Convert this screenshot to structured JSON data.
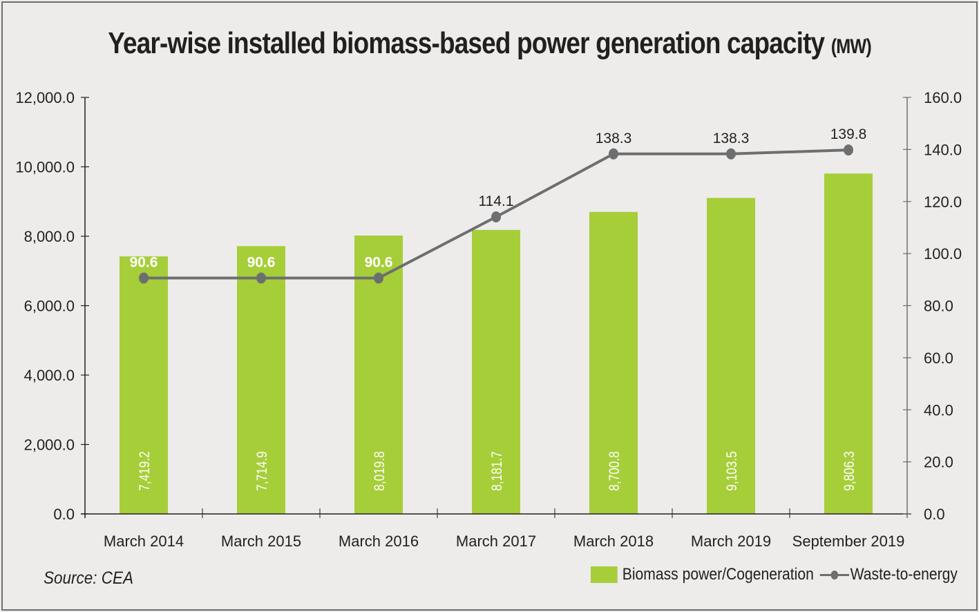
{
  "title": "Year-wise installed biomass-based power generation capacity",
  "title_unit": "(MW)",
  "source": "Source: CEA",
  "colors": {
    "bar": "#a6ce39",
    "line": "#6d6e70",
    "text": "#231f20",
    "background": "#edecea"
  },
  "legend": [
    {
      "label": "Biomass power/Cogeneration",
      "type": "bar"
    },
    {
      "label": "Waste-to-energy",
      "type": "line"
    }
  ],
  "chart_data": {
    "type": "bar+line",
    "title": "Year-wise installed biomass-based power generation capacity (MW)",
    "categories": [
      "March 2014",
      "March 2015",
      "March 2016",
      "March 2017",
      "March 2018",
      "March 2019",
      "September 2019"
    ],
    "series": [
      {
        "name": "Biomass power/Cogeneration",
        "type": "bar",
        "axis": "left",
        "values": [
          7419.2,
          7714.9,
          8019.8,
          8181.7,
          8700.8,
          9103.5,
          9806.3
        ],
        "labels": [
          "7,419.2",
          "7,714.9",
          "8,019.8",
          "8,181.7",
          "8,700.8",
          "9,103.5",
          "9,806.3"
        ]
      },
      {
        "name": "Waste-to-energy",
        "type": "line",
        "axis": "right",
        "values": [
          90.6,
          90.6,
          90.6,
          114.1,
          138.3,
          138.3,
          139.8
        ],
        "labels": [
          "90.6",
          "90.6",
          "90.6",
          "114.1",
          "138.3",
          "138.3",
          "139.8"
        ]
      }
    ],
    "left_axis": {
      "ylim": [
        0,
        12000
      ],
      "ticks": [
        0,
        2000,
        4000,
        6000,
        8000,
        10000,
        12000
      ],
      "tick_labels": [
        "0.0",
        "2,000.0",
        "4,000.0",
        "6,000.0",
        "8,000.0",
        "10,000.0",
        "12,000.0"
      ]
    },
    "right_axis": {
      "ylim": [
        0,
        160
      ],
      "ticks": [
        0,
        20,
        40,
        60,
        80,
        100,
        120,
        140,
        160
      ],
      "tick_labels": [
        "0.0",
        "20.0",
        "40.0",
        "60.0",
        "80.0",
        "100.0",
        "120.0",
        "140.0",
        "160.0"
      ]
    },
    "xlabel": "",
    "ylabel": "",
    "grid": false,
    "legend_position": "bottom-right"
  }
}
